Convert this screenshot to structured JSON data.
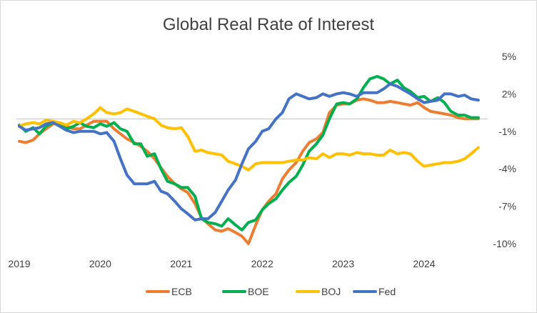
{
  "chart_data": {
    "type": "line",
    "title": "Global Real Rate of Interest",
    "xlabel": "",
    "ylabel": "",
    "x_range": [
      2019.0,
      2024.75
    ],
    "ylim": [
      -10,
      5
    ],
    "y_ticks": [
      5,
      2,
      -1,
      -4,
      -7,
      -10
    ],
    "y_tick_labels": [
      "5%",
      "2%",
      "-1%",
      "-4%",
      "-7%",
      "-10%"
    ],
    "x_ticks": [
      2019,
      2020,
      2021,
      2022,
      2023,
      2024
    ],
    "x_tick_labels": [
      "2019",
      "2020",
      "2021",
      "2022",
      "2023",
      "2024"
    ],
    "zero_line": 0,
    "grid": false,
    "legend_position": "bottom",
    "series": [
      {
        "name": "ECB",
        "color": "#ED7D31",
        "x": [
          2019.0,
          2019.08,
          2019.17,
          2019.25,
          2019.33,
          2019.42,
          2019.5,
          2019.58,
          2019.67,
          2019.75,
          2019.83,
          2019.92,
          2020.0,
          2020.08,
          2020.17,
          2020.25,
          2020.33,
          2020.42,
          2020.5,
          2020.58,
          2020.67,
          2020.75,
          2020.83,
          2020.92,
          2021.0,
          2021.08,
          2021.17,
          2021.25,
          2021.33,
          2021.42,
          2021.5,
          2021.58,
          2021.67,
          2021.75,
          2021.83,
          2021.92,
          2022.0,
          2022.08,
          2022.17,
          2022.25,
          2022.33,
          2022.42,
          2022.5,
          2022.58,
          2022.67,
          2022.75,
          2022.83,
          2022.92,
          2023.0,
          2023.08,
          2023.17,
          2023.25,
          2023.33,
          2023.42,
          2023.5,
          2023.58,
          2023.67,
          2023.75,
          2023.83,
          2023.92,
          2024.0,
          2024.08,
          2024.17,
          2024.25,
          2024.33,
          2024.42,
          2024.5,
          2024.58,
          2024.67
        ],
        "values": [
          -1.8,
          -1.9,
          -1.7,
          -1.2,
          -0.8,
          -0.4,
          -0.4,
          -0.6,
          -0.8,
          -0.8,
          -0.5,
          -0.2,
          -0.2,
          -0.2,
          -0.8,
          -1.2,
          -1.6,
          -1.9,
          -2.2,
          -2.6,
          -3.2,
          -3.9,
          -4.6,
          -5.2,
          -5.6,
          -5.9,
          -6.8,
          -7.9,
          -8.4,
          -8.9,
          -9.0,
          -8.8,
          -9.1,
          -9.4,
          -10.0,
          -8.5,
          -7.3,
          -6.6,
          -6.0,
          -4.8,
          -4.1,
          -3.5,
          -2.6,
          -1.9,
          -1.6,
          -1.1,
          0.5,
          1.1,
          1.2,
          1.2,
          1.5,
          1.6,
          1.5,
          1.3,
          1.3,
          1.4,
          1.3,
          1.2,
          1.1,
          1.3,
          0.9,
          0.6,
          0.5,
          0.4,
          0.3,
          0.1,
          0.0,
          0.0,
          0.0
        ]
      },
      {
        "name": "BOE",
        "color": "#00B050",
        "x": [
          2019.0,
          2019.08,
          2019.17,
          2019.25,
          2019.33,
          2019.42,
          2019.5,
          2019.58,
          2019.67,
          2019.75,
          2019.83,
          2019.92,
          2020.0,
          2020.08,
          2020.17,
          2020.25,
          2020.33,
          2020.42,
          2020.5,
          2020.58,
          2020.67,
          2020.75,
          2020.83,
          2020.92,
          2021.0,
          2021.08,
          2021.17,
          2021.25,
          2021.33,
          2021.42,
          2021.5,
          2021.58,
          2021.67,
          2021.75,
          2021.83,
          2021.92,
          2022.0,
          2022.08,
          2022.17,
          2022.25,
          2022.33,
          2022.42,
          2022.5,
          2022.58,
          2022.67,
          2022.75,
          2022.83,
          2022.92,
          2023.0,
          2023.08,
          2023.17,
          2023.25,
          2023.33,
          2023.42,
          2023.5,
          2023.58,
          2023.67,
          2023.75,
          2023.83,
          2023.92,
          2024.0,
          2024.08,
          2024.17,
          2024.25,
          2024.33,
          2024.42,
          2024.5,
          2024.58,
          2024.67
        ],
        "values": [
          -0.5,
          -1.0,
          -0.7,
          -1.2,
          -0.6,
          -0.3,
          -0.4,
          -0.8,
          -0.6,
          -0.3,
          -0.6,
          -0.7,
          -0.4,
          -0.6,
          -0.3,
          -0.8,
          -1.0,
          -2.0,
          -2.0,
          -3.0,
          -2.8,
          -4.0,
          -5.0,
          -5.2,
          -5.5,
          -5.5,
          -6.2,
          -8.0,
          -8.3,
          -8.4,
          -8.6,
          -8.0,
          -8.5,
          -8.9,
          -8.3,
          -8.1,
          -7.3,
          -6.8,
          -6.4,
          -5.7,
          -5.1,
          -4.6,
          -3.7,
          -2.6,
          -2.0,
          -1.3,
          0.0,
          1.2,
          1.3,
          1.2,
          1.6,
          2.5,
          3.2,
          3.4,
          3.2,
          2.8,
          3.1,
          2.5,
          2.2,
          1.7,
          1.8,
          1.4,
          1.7,
          1.3,
          0.6,
          0.3,
          0.3,
          0.1,
          0.1
        ]
      },
      {
        "name": "BOJ",
        "color": "#FFC000",
        "x": [
          2019.0,
          2019.08,
          2019.17,
          2019.25,
          2019.33,
          2019.42,
          2019.5,
          2019.58,
          2019.67,
          2019.75,
          2019.83,
          2019.92,
          2020.0,
          2020.08,
          2020.17,
          2020.25,
          2020.33,
          2020.42,
          2020.5,
          2020.58,
          2020.67,
          2020.75,
          2020.83,
          2020.92,
          2021.0,
          2021.08,
          2021.17,
          2021.25,
          2021.33,
          2021.42,
          2021.5,
          2021.58,
          2021.67,
          2021.75,
          2021.83,
          2021.92,
          2022.0,
          2022.08,
          2022.17,
          2022.25,
          2022.33,
          2022.42,
          2022.5,
          2022.58,
          2022.67,
          2022.75,
          2022.83,
          2022.92,
          2023.0,
          2023.08,
          2023.17,
          2023.25,
          2023.33,
          2023.42,
          2023.5,
          2023.58,
          2023.67,
          2023.75,
          2023.83,
          2023.92,
          2024.0,
          2024.08,
          2024.17,
          2024.25,
          2024.33,
          2024.42,
          2024.5,
          2024.58,
          2024.67
        ],
        "values": [
          -0.6,
          -0.4,
          -0.3,
          -0.4,
          -0.1,
          -0.2,
          -0.3,
          -0.5,
          -0.2,
          -0.3,
          0.0,
          0.4,
          0.9,
          0.5,
          0.4,
          0.5,
          0.8,
          0.6,
          0.4,
          0.2,
          0.0,
          -0.5,
          -0.7,
          -0.8,
          -0.7,
          -1.4,
          -2.6,
          -2.5,
          -2.7,
          -2.8,
          -2.9,
          -3.4,
          -3.6,
          -3.8,
          -4.1,
          -3.6,
          -3.5,
          -3.5,
          -3.5,
          -3.5,
          -3.4,
          -3.3,
          -3.3,
          -3.1,
          -3.2,
          -2.8,
          -3.1,
          -2.8,
          -2.8,
          -2.9,
          -2.7,
          -2.8,
          -2.8,
          -2.9,
          -2.9,
          -2.5,
          -2.8,
          -2.7,
          -2.8,
          -3.4,
          -3.8,
          -3.7,
          -3.6,
          -3.5,
          -3.5,
          -3.4,
          -3.2,
          -2.8,
          -2.3
        ]
      },
      {
        "name": "Fed",
        "color": "#4472C4",
        "x": [
          2019.0,
          2019.08,
          2019.17,
          2019.25,
          2019.33,
          2019.42,
          2019.5,
          2019.58,
          2019.67,
          2019.75,
          2019.83,
          2019.92,
          2020.0,
          2020.08,
          2020.17,
          2020.25,
          2020.33,
          2020.42,
          2020.5,
          2020.58,
          2020.67,
          2020.75,
          2020.83,
          2020.92,
          2021.0,
          2021.08,
          2021.17,
          2021.25,
          2021.33,
          2021.42,
          2021.5,
          2021.58,
          2021.67,
          2021.75,
          2021.83,
          2021.92,
          2022.0,
          2022.08,
          2022.17,
          2022.25,
          2022.33,
          2022.42,
          2022.5,
          2022.58,
          2022.67,
          2022.75,
          2022.83,
          2022.92,
          2023.0,
          2023.08,
          2023.17,
          2023.25,
          2023.33,
          2023.42,
          2023.5,
          2023.58,
          2023.67,
          2023.75,
          2023.83,
          2023.92,
          2024.0,
          2024.08,
          2024.17,
          2024.25,
          2024.33,
          2024.42,
          2024.5,
          2024.58,
          2024.67
        ],
        "values": [
          -0.6,
          -0.9,
          -0.8,
          -0.7,
          -0.4,
          -0.3,
          -0.6,
          -0.9,
          -1.1,
          -1.0,
          -1.0,
          -1.0,
          -1.2,
          -1.1,
          -1.8,
          -3.2,
          -4.5,
          -5.2,
          -5.2,
          -5.2,
          -5.0,
          -5.8,
          -6.0,
          -6.6,
          -7.2,
          -7.6,
          -8.1,
          -8.0,
          -8.0,
          -7.5,
          -6.6,
          -5.7,
          -4.9,
          -3.6,
          -2.4,
          -1.8,
          -1.0,
          -0.8,
          0.0,
          0.5,
          1.6,
          2.0,
          1.8,
          1.6,
          1.7,
          2.0,
          1.8,
          2.0,
          2.1,
          2.0,
          1.8,
          2.1,
          2.1,
          2.1,
          2.4,
          2.8,
          2.6,
          2.3,
          2.0,
          1.6,
          1.3,
          1.4,
          1.5,
          2.0,
          2.0,
          1.8,
          1.9,
          1.6,
          1.5
        ]
      }
    ]
  }
}
